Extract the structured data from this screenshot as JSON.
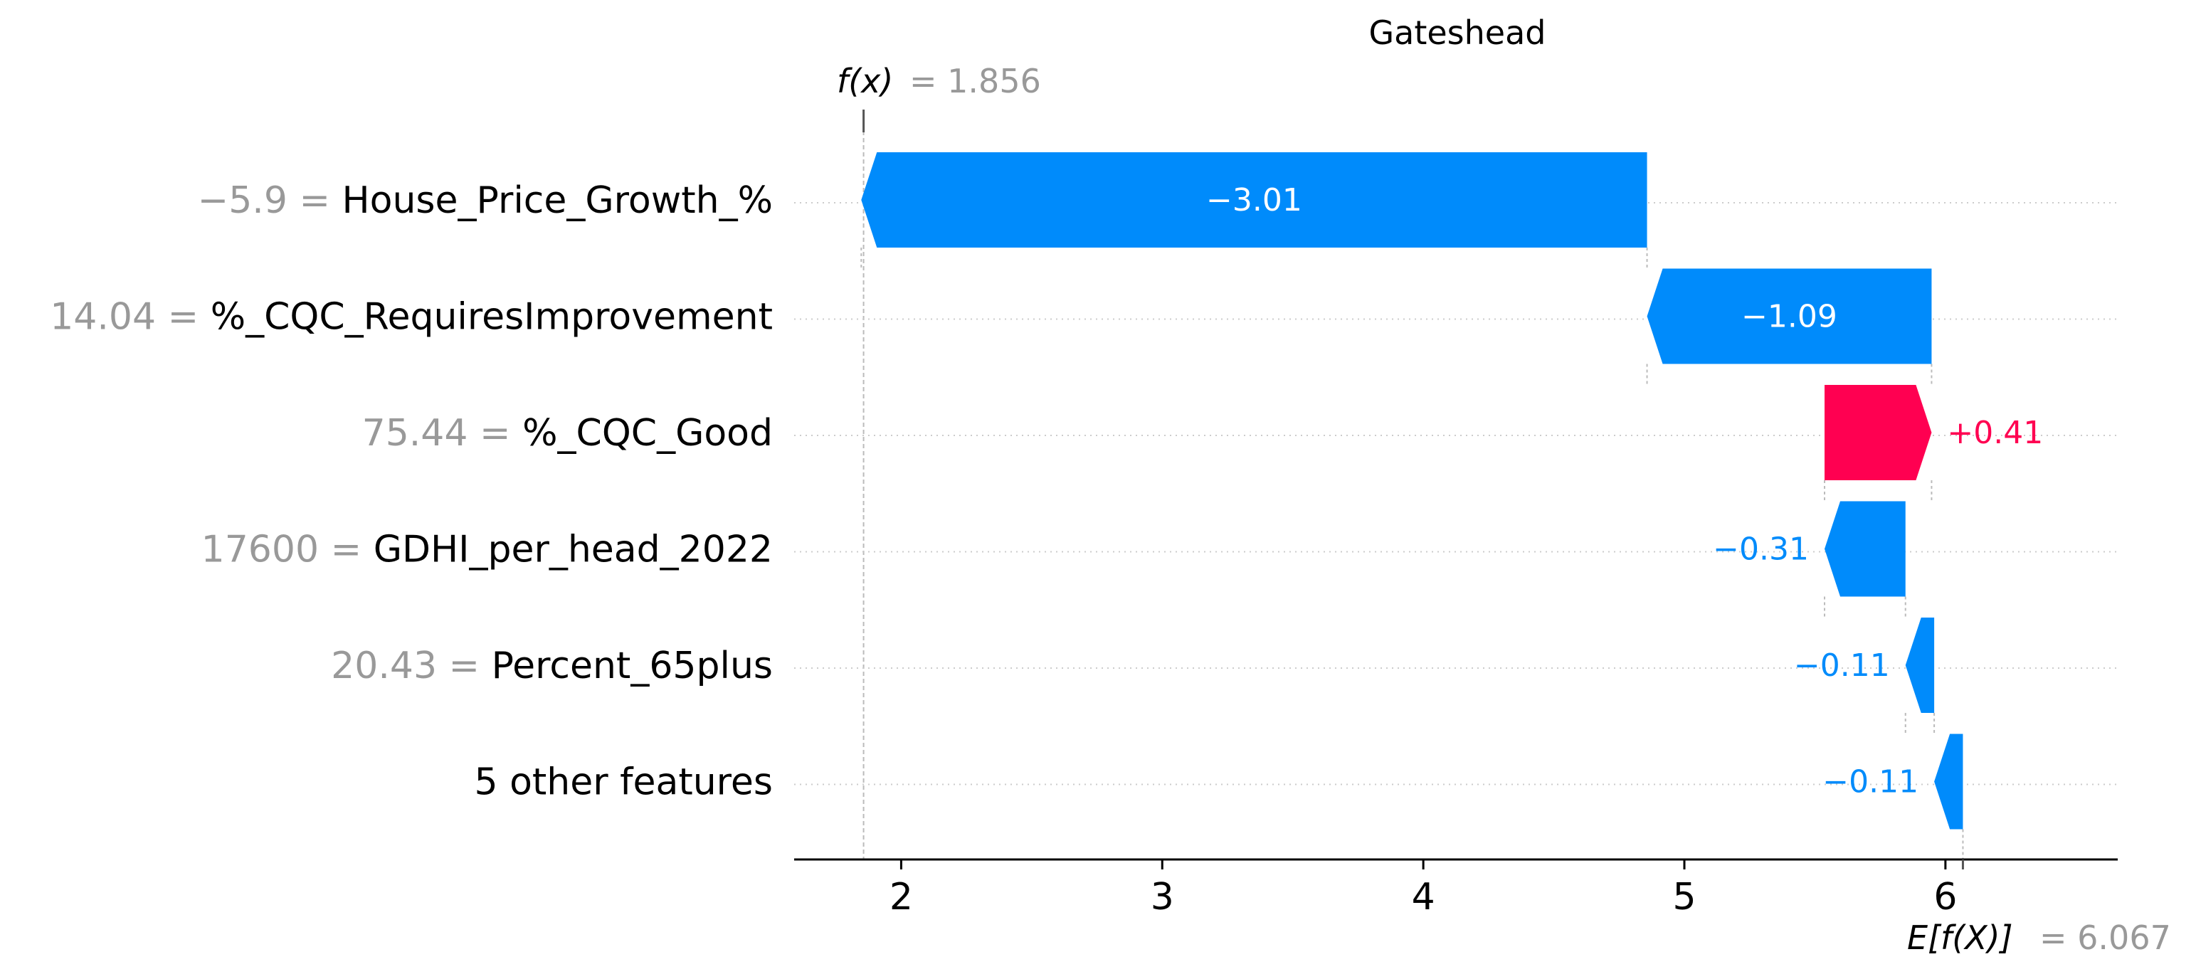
{
  "chart_data": {
    "type": "waterfall",
    "title": "Gateshead",
    "fx_label_math": "f(x)",
    "fx_label_eq": "= 1.856",
    "fx_value": 1.856,
    "efx_label_math": "E[f(X)]",
    "efx_label_eq": "= 6.067",
    "base_value": 6.067,
    "xticks": [
      2,
      3,
      4,
      5,
      6
    ],
    "tick_labels": [
      "2",
      "3",
      "4",
      "5",
      "6"
    ],
    "xlim": [
      1.59,
      6.66
    ],
    "features": [
      {
        "value_text": "−5.9 =",
        "name": "House_Price_Growth_%",
        "contribution": -3.01,
        "label": "−3.01"
      },
      {
        "value_text": "14.04 =",
        "name": "%_CQC_RequiresImprovement",
        "contribution": -1.09,
        "label": "−1.09"
      },
      {
        "value_text": "75.44 =",
        "name": "%_CQC_Good",
        "contribution": 0.41,
        "label": "+0.41"
      },
      {
        "value_text": "17600 =",
        "name": "GDHI_per_head_2022",
        "contribution": -0.31,
        "label": "−0.31"
      },
      {
        "value_text": "20.43 =",
        "name": "Percent_65plus",
        "contribution": -0.11,
        "label": "−0.11"
      },
      {
        "value_text": "",
        "name": "5 other features",
        "contribution": -0.11,
        "label": "−0.11"
      }
    ],
    "colors": {
      "negative": "#008bfb",
      "positive": "#ff0051",
      "value_gray": "#999999",
      "text": "#000000",
      "grid": "#cccccc"
    }
  }
}
